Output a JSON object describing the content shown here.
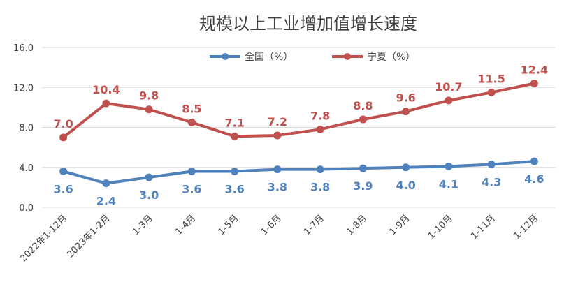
{
  "chart_data": {
    "type": "line",
    "title": "规模以上工业增加值增长速度",
    "xlabel": "",
    "ylabel": "",
    "ylim": [
      0,
      16
    ],
    "yticks": [
      "0.0",
      "4.0",
      "8.0",
      "12.0",
      "16.0"
    ],
    "grid": true,
    "legend": "top-center",
    "categories": [
      "2022年1-12月",
      "2023年1-2月",
      "1-3月",
      "1-4月",
      "1-5月",
      "1-6月",
      "1-7月",
      "1-8月",
      "1-9月",
      "1-10月",
      "1-11月",
      "1-12月"
    ],
    "series": [
      {
        "name": "全国（%）",
        "color": "#4f81bd",
        "values": [
          3.6,
          2.4,
          3.0,
          3.6,
          3.6,
          3.8,
          3.8,
          3.9,
          4.0,
          4.1,
          4.3,
          4.6
        ],
        "labels": [
          "3.6",
          "2.4",
          "3.0",
          "3.6",
          "3.6",
          "3.8",
          "3.8",
          "3.9",
          "4.0",
          "4.1",
          "4.3",
          "4.6"
        ]
      },
      {
        "name": "宁夏（%）",
        "color": "#c0504d",
        "values": [
          7.0,
          10.4,
          9.8,
          8.5,
          7.1,
          7.2,
          7.8,
          8.8,
          9.6,
          10.7,
          11.5,
          12.4
        ],
        "labels": [
          "7.0",
          "10.4",
          "9.8",
          "8.5",
          "7.1",
          "7.2",
          "7.8",
          "8.8",
          "9.6",
          "10.7",
          "11.5",
          "12.4"
        ]
      }
    ]
  }
}
